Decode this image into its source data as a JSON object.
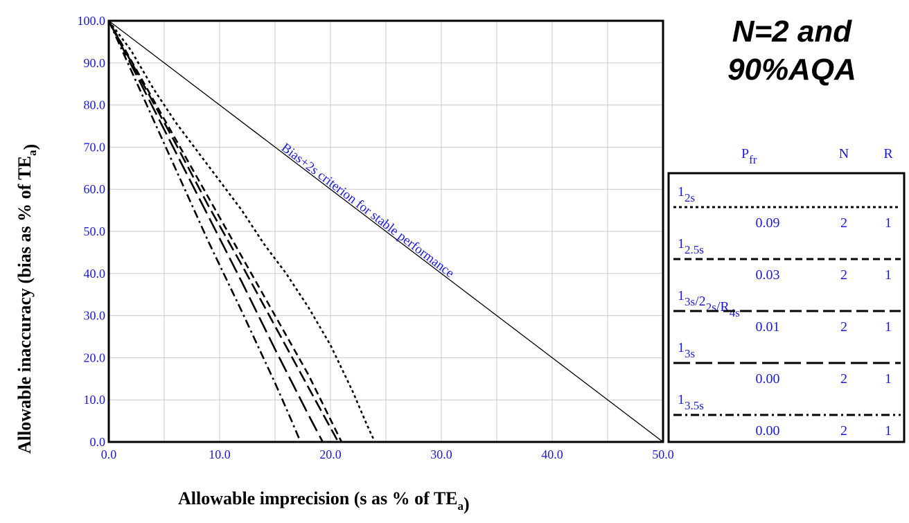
{
  "title_lines": [
    "N=2 and",
    "90%AQA"
  ],
  "chart_data": {
    "type": "line",
    "xlabel": {
      "main": "Allowable imprecision (s as % of TE",
      "sub": "a",
      "end": ")"
    },
    "ylabel": {
      "main": "Allowable inaccuracy (bias as % of TE",
      "sub": "a",
      "end": ")"
    },
    "xlim": [
      0,
      50
    ],
    "ylim": [
      0,
      100
    ],
    "x_ticks": [
      "0.0",
      "10.0",
      "20.0",
      "30.0",
      "40.0",
      "50.0"
    ],
    "y_ticks": [
      "0.0",
      "10.0",
      "20.0",
      "30.0",
      "40.0",
      "50.0",
      "60.0",
      "70.0",
      "80.0",
      "90.0",
      "100.0"
    ],
    "grid": true,
    "annotation": "Bias+2s criterion for stable performance",
    "series": [
      {
        "key": "criterion",
        "style": "solid",
        "points": [
          [
            0,
            100
          ],
          [
            50,
            0
          ]
        ]
      },
      {
        "key": "r12s",
        "style": "dot",
        "points": [
          [
            0,
            100
          ],
          [
            2,
            93
          ],
          [
            4,
            84
          ],
          [
            6,
            76
          ],
          [
            8,
            69
          ],
          [
            10,
            62
          ],
          [
            12,
            55
          ],
          [
            14,
            47
          ],
          [
            16,
            40
          ],
          [
            18,
            32
          ],
          [
            20,
            23
          ],
          [
            22,
            12
          ],
          [
            23.3,
            4
          ],
          [
            24,
            0
          ]
        ]
      },
      {
        "key": "r125s",
        "style": "dash",
        "points": [
          [
            0,
            100
          ],
          [
            3,
            86
          ],
          [
            6,
            72
          ],
          [
            9,
            58
          ],
          [
            12,
            44
          ],
          [
            15,
            30
          ],
          [
            18,
            16
          ],
          [
            21,
            0
          ]
        ]
      },
      {
        "key": "r13s2of2",
        "style": "longdash",
        "points": [
          [
            0,
            100
          ],
          [
            3,
            85.5
          ],
          [
            6,
            71
          ],
          [
            9,
            56
          ],
          [
            12,
            42
          ],
          [
            15,
            27.5
          ],
          [
            18,
            13
          ],
          [
            20.7,
            0
          ]
        ]
      },
      {
        "key": "r13s",
        "style": "xlongdash",
        "points": [
          [
            0,
            100
          ],
          [
            3,
            84.5
          ],
          [
            6,
            69
          ],
          [
            9,
            53.5
          ],
          [
            12,
            38
          ],
          [
            15,
            22
          ],
          [
            18,
            6.5
          ],
          [
            19.3,
            0
          ]
        ]
      },
      {
        "key": "r135s",
        "style": "dashdot",
        "points": [
          [
            0,
            100
          ],
          [
            3,
            82.5
          ],
          [
            6,
            65
          ],
          [
            9,
            47.5
          ],
          [
            12,
            31
          ],
          [
            15,
            14
          ],
          [
            16.5,
            5
          ],
          [
            17.3,
            0
          ]
        ]
      }
    ],
    "legend": {
      "headers": {
        "pfr_main": "P",
        "pfr_sub": "fr",
        "n": "N",
        "r": "R"
      },
      "rows": [
        {
          "key": "r12s",
          "style": "dot",
          "label": [
            {
              "t": "1",
              "sub": "2s"
            }
          ],
          "pfr": "0.09",
          "n": "2",
          "r": "1"
        },
        {
          "key": "r125s",
          "style": "dash",
          "label": [
            {
              "t": "1",
              "sub": "2.5s"
            }
          ],
          "pfr": "0.03",
          "n": "2",
          "r": "1"
        },
        {
          "key": "r13s2of2",
          "style": "longdash",
          "label": [
            {
              "t": "1",
              "sub": "3s"
            },
            {
              "t": "/2",
              "sub": "2s"
            },
            {
              "t": "/R",
              "sub": "4s"
            }
          ],
          "pfr": "0.01",
          "n": "2",
          "r": "1"
        },
        {
          "key": "r13s",
          "style": "xlongdash",
          "label": [
            {
              "t": "1",
              "sub": "3s"
            }
          ],
          "pfr": "0.00",
          "n": "2",
          "r": "1"
        },
        {
          "key": "r135s",
          "style": "dashdot",
          "label": [
            {
              "t": "1",
              "sub": "3.5s"
            }
          ],
          "pfr": "0.00",
          "n": "2",
          "r": "1"
        }
      ]
    }
  }
}
